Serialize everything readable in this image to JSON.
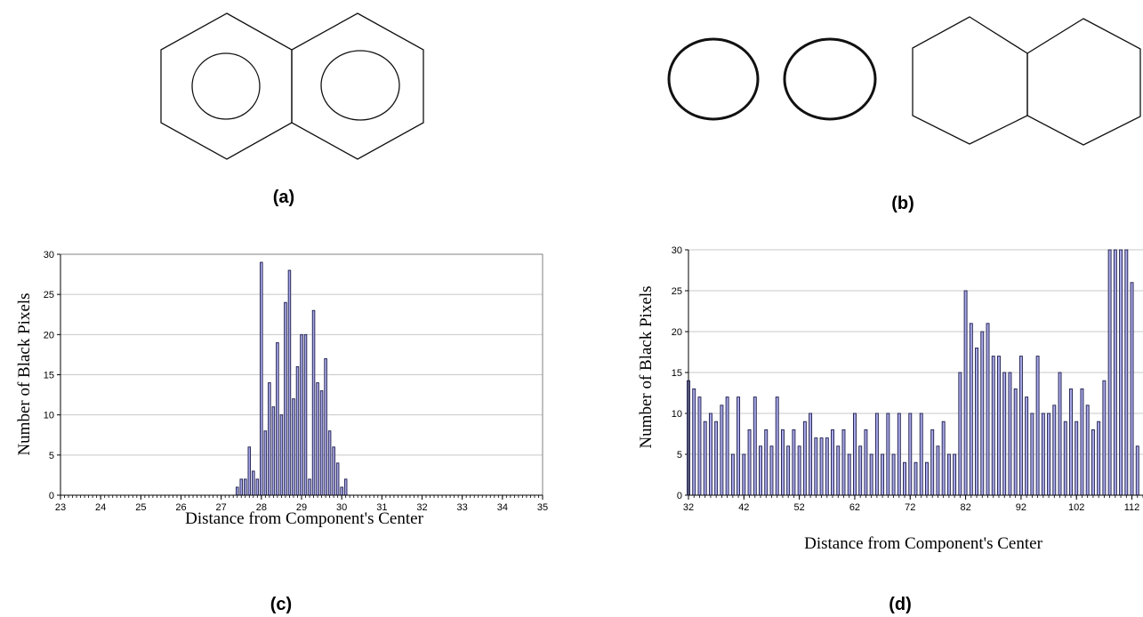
{
  "captions": {
    "a": "(a)",
    "b": "(b)",
    "c": "(c)",
    "d": "(d)"
  },
  "colors": {
    "bar_fill": "#a9a9e8",
    "bar_stroke": "#1a1a4a",
    "grid": "#c8c8c8",
    "axis": "#000000"
  },
  "chart_data": [
    {
      "id": "c",
      "type": "bar",
      "xlabel": "Distance from Component's Center",
      "ylabel": "Number of Black Pixels",
      "xlim": [
        23,
        35
      ],
      "ylim": [
        0,
        30
      ],
      "xticks": [
        23,
        24,
        25,
        26,
        27,
        28,
        29,
        30,
        31,
        32,
        33,
        34,
        35
      ],
      "yticks": [
        0,
        5,
        10,
        15,
        20,
        25,
        30
      ],
      "grid": "horizontal",
      "x": [
        27.4,
        27.5,
        27.6,
        27.7,
        27.8,
        27.9,
        28.0,
        28.1,
        28.2,
        28.3,
        28.4,
        28.5,
        28.6,
        28.7,
        28.8,
        28.9,
        29.0,
        29.1,
        29.2,
        29.3,
        29.4,
        29.5,
        29.6,
        29.7,
        29.8,
        29.9,
        30.0,
        30.1
      ],
      "values": [
        1,
        2,
        2,
        6,
        3,
        2,
        29,
        8,
        14,
        11,
        19,
        10,
        24,
        28,
        12,
        16,
        20,
        20,
        2,
        23,
        14,
        13,
        17,
        8,
        6,
        4,
        1,
        2
      ]
    },
    {
      "id": "d",
      "type": "bar",
      "xlabel": "Distance from Component's Center",
      "ylabel": "Number of Black Pixels",
      "xlim": [
        32,
        114
      ],
      "ylim": [
        0,
        30
      ],
      "xticks": [
        32,
        42,
        52,
        62,
        72,
        82,
        92,
        102,
        112
      ],
      "yticks": [
        0,
        5,
        10,
        15,
        20,
        25,
        30
      ],
      "grid": "horizontal",
      "x": [
        32,
        33,
        34,
        35,
        36,
        37,
        38,
        39,
        40,
        41,
        42,
        43,
        44,
        45,
        46,
        47,
        48,
        49,
        50,
        51,
        52,
        53,
        54,
        55,
        56,
        57,
        58,
        59,
        60,
        61,
        62,
        63,
        64,
        65,
        66,
        67,
        68,
        69,
        70,
        71,
        72,
        73,
        74,
        75,
        76,
        77,
        78,
        79,
        80,
        81,
        82,
        83,
        84,
        85,
        86,
        87,
        88,
        89,
        90,
        91,
        92,
        93,
        94,
        95,
        96,
        97,
        98,
        99,
        100,
        101,
        102,
        103,
        104,
        105,
        106,
        107,
        108,
        109,
        110,
        111,
        112,
        113
      ],
      "values": [
        14,
        13,
        12,
        9,
        10,
        9,
        11,
        12,
        5,
        12,
        5,
        8,
        12,
        6,
        8,
        6,
        12,
        8,
        6,
        8,
        6,
        9,
        10,
        7,
        7,
        7,
        8,
        6,
        8,
        5,
        10,
        6,
        8,
        5,
        10,
        5,
        10,
        5,
        10,
        4,
        10,
        4,
        10,
        4,
        8,
        6,
        9,
        5,
        5,
        15,
        25,
        21,
        18,
        20,
        21,
        17,
        17,
        15,
        15,
        13,
        17,
        12,
        10,
        17,
        10,
        10,
        11,
        15,
        9,
        13,
        9,
        13,
        11,
        8,
        9,
        14,
        30,
        30,
        30,
        30,
        26,
        6
      ]
    }
  ]
}
